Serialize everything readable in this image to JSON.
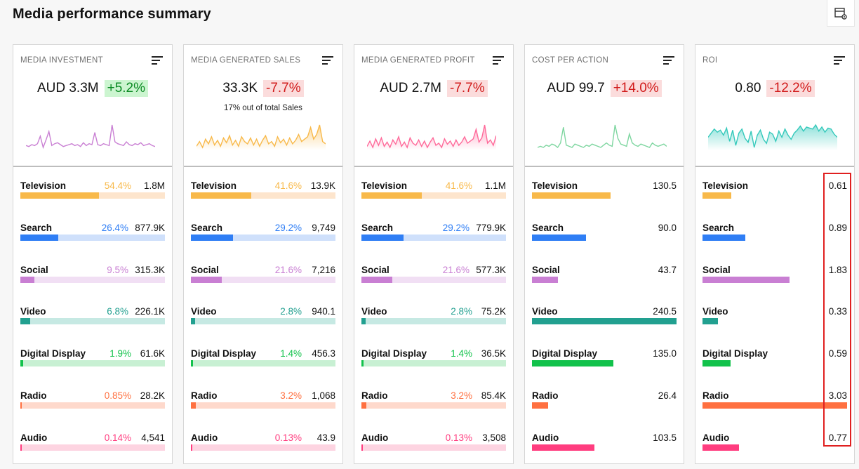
{
  "page": {
    "title": "Media performance summary"
  },
  "toolbar": {
    "settings_icon": "table-settings-icon"
  },
  "channel_colors": {
    "Television": {
      "main": "#f8b94a",
      "light": "#fde5cd"
    },
    "Search": {
      "main": "#2f7ef5",
      "light": "#cfe0fb"
    },
    "Social": {
      "main": "#c97fd3",
      "light": "#f1dff4"
    },
    "Video": {
      "main": "#22a090",
      "light": "#c6e9e3"
    },
    "Digital Display": {
      "main": "#12c24b",
      "light": "#c8f0d3"
    },
    "Radio": {
      "main": "#ff7040",
      "light": "#fed9cc"
    },
    "Audio": {
      "main": "#ff3d7f",
      "light": "#fdd4e1"
    }
  },
  "cards": [
    {
      "label": "MEDIA INVESTMENT",
      "value": "AUD 3.3M",
      "change": "+5.2%",
      "change_dir": "pos",
      "subtitle": "",
      "spark_color": "#c97fd3",
      "spark_fill": false,
      "spark": [
        12,
        11,
        13,
        12,
        14,
        22,
        10,
        18,
        27,
        12,
        14,
        15,
        13,
        11,
        12,
        13,
        14,
        12,
        13,
        11,
        15,
        12,
        14,
        13,
        26,
        13,
        12,
        14,
        13,
        12,
        34,
        16,
        14,
        13,
        12,
        16,
        13,
        12,
        14,
        13,
        15,
        12,
        13,
        14,
        12,
        11
      ],
      "rows": [
        {
          "name": "Television",
          "pct": "54.4%",
          "pct_num": 54.4,
          "value": "1.8M",
          "bar": 0.544
        },
        {
          "name": "Search",
          "pct": "26.4%",
          "pct_num": 26.4,
          "value": "877.9K",
          "bar": 0.264
        },
        {
          "name": "Social",
          "pct": "9.5%",
          "pct_num": 9.5,
          "value": "315.3K",
          "bar": 0.095
        },
        {
          "name": "Video",
          "pct": "6.8%",
          "pct_num": 6.8,
          "value": "226.1K",
          "bar": 0.068
        },
        {
          "name": "Digital Display",
          "pct": "1.9%",
          "pct_num": 1.9,
          "value": "61.6K",
          "bar": 0.019
        },
        {
          "name": "Radio",
          "pct": "0.85%",
          "pct_num": 0.85,
          "value": "28.2K",
          "bar": 0.0085
        },
        {
          "name": "Audio",
          "pct": "0.14%",
          "pct_num": 0.14,
          "value": "4,541",
          "bar": 0.0014
        }
      ]
    },
    {
      "label": "MEDIA GENERATED SALES",
      "value": "33.3K",
      "change": "-7.7%",
      "change_dir": "neg",
      "subtitle": "17% out of total Sales",
      "spark_color": "#f8b94a",
      "spark_fill": true,
      "spark": [
        14,
        18,
        13,
        20,
        16,
        22,
        15,
        19,
        14,
        21,
        17,
        23,
        15,
        19,
        14,
        22,
        18,
        16,
        21,
        15,
        20,
        14,
        19,
        23,
        16,
        18,
        14,
        22,
        17,
        20,
        15,
        21,
        16,
        19,
        24,
        18,
        20,
        22,
        30,
        20,
        24,
        32,
        18,
        16
      ],
      "rows": [
        {
          "name": "Television",
          "pct": "41.6%",
          "pct_num": 41.6,
          "value": "13.9K",
          "bar": 0.416
        },
        {
          "name": "Search",
          "pct": "29.2%",
          "pct_num": 29.2,
          "value": "9,749",
          "bar": 0.292
        },
        {
          "name": "Social",
          "pct": "21.6%",
          "pct_num": 21.6,
          "value": "7,216",
          "bar": 0.216
        },
        {
          "name": "Video",
          "pct": "2.8%",
          "pct_num": 2.8,
          "value": "940.1",
          "bar": 0.028
        },
        {
          "name": "Digital Display",
          "pct": "1.4%",
          "pct_num": 1.4,
          "value": "456.3",
          "bar": 0.014
        },
        {
          "name": "Radio",
          "pct": "3.2%",
          "pct_num": 3.2,
          "value": "1,068",
          "bar": 0.032
        },
        {
          "name": "Audio",
          "pct": "0.13%",
          "pct_num": 0.13,
          "value": "43.9",
          "bar": 0.0013
        }
      ]
    },
    {
      "label": "MEDIA GENERATED PROFIT",
      "value": "AUD 2.7M",
      "change": "-7.7%",
      "change_dir": "neg",
      "subtitle": "",
      "spark_color": "#ff6a9a",
      "spark_fill": true,
      "spark": [
        14,
        19,
        13,
        21,
        15,
        22,
        14,
        18,
        13,
        20,
        16,
        23,
        14,
        18,
        13,
        22,
        17,
        15,
        20,
        14,
        19,
        13,
        18,
        22,
        15,
        17,
        13,
        21,
        16,
        19,
        14,
        20,
        15,
        18,
        23,
        17,
        19,
        21,
        30,
        18,
        22,
        34,
        17,
        20,
        15,
        24
      ],
      "rows": [
        {
          "name": "Television",
          "pct": "41.6%",
          "pct_num": 41.6,
          "value": "1.1M",
          "bar": 0.416
        },
        {
          "name": "Search",
          "pct": "29.2%",
          "pct_num": 29.2,
          "value": "779.9K",
          "bar": 0.292
        },
        {
          "name": "Social",
          "pct": "21.6%",
          "pct_num": 21.6,
          "value": "577.3K",
          "bar": 0.216
        },
        {
          "name": "Video",
          "pct": "2.8%",
          "pct_num": 2.8,
          "value": "75.2K",
          "bar": 0.028
        },
        {
          "name": "Digital Display",
          "pct": "1.4%",
          "pct_num": 1.4,
          "value": "36.5K",
          "bar": 0.014
        },
        {
          "name": "Radio",
          "pct": "3.2%",
          "pct_num": 3.2,
          "value": "85.4K",
          "bar": 0.032
        },
        {
          "name": "Audio",
          "pct": "0.13%",
          "pct_num": 0.13,
          "value": "3,508",
          "bar": 0.0013
        }
      ]
    },
    {
      "label": "COST PER ACTION",
      "value": "AUD 99.7",
      "change": "+14.0%",
      "change_dir": "neg",
      "subtitle": "",
      "spark_color": "#7ed6a0",
      "spark_fill": false,
      "spark": [
        10,
        11,
        10,
        12,
        11,
        13,
        12,
        10,
        14,
        28,
        12,
        11,
        10,
        13,
        12,
        11,
        10,
        12,
        11,
        13,
        12,
        11,
        10,
        12,
        14,
        12,
        11,
        30,
        18,
        13,
        12,
        11,
        22,
        14,
        12,
        11,
        13,
        12,
        11,
        10,
        14,
        12,
        11,
        12,
        13,
        11
      ],
      "rows": [
        {
          "name": "Television",
          "pct": "",
          "pct_num": null,
          "value": "130.5",
          "bar": 0.543
        },
        {
          "name": "Search",
          "pct": "",
          "pct_num": null,
          "value": "90.0",
          "bar": 0.374
        },
        {
          "name": "Social",
          "pct": "",
          "pct_num": null,
          "value": "43.7",
          "bar": 0.182
        },
        {
          "name": "Video",
          "pct": "",
          "pct_num": null,
          "value": "240.5",
          "bar": 1.0
        },
        {
          "name": "Digital Display",
          "pct": "",
          "pct_num": null,
          "value": "135.0",
          "bar": 0.561
        },
        {
          "name": "Radio",
          "pct": "",
          "pct_num": null,
          "value": "26.4",
          "bar": 0.11
        },
        {
          "name": "Audio",
          "pct": "",
          "pct_num": null,
          "value": "103.5",
          "bar": 0.43
        }
      ]
    },
    {
      "label": "ROI",
      "value": "0.80",
      "change": "-12.2%",
      "change_dir": "neg",
      "subtitle": "",
      "spark_color": "#34c9bb",
      "spark_fill": true,
      "spark": [
        22,
        26,
        30,
        27,
        29,
        24,
        31,
        18,
        29,
        14,
        26,
        30,
        21,
        17,
        28,
        12,
        24,
        29,
        20,
        16,
        27,
        25,
        18,
        28,
        22,
        30,
        24,
        20,
        26,
        29,
        33,
        28,
        32,
        31,
        30,
        34,
        28,
        32,
        27,
        31,
        30,
        25,
        22
      ],
      "rows": [
        {
          "name": "Television",
          "pct": "",
          "pct_num": null,
          "value": "0.61",
          "bar": 0.201
        },
        {
          "name": "Search",
          "pct": "",
          "pct_num": null,
          "value": "0.89",
          "bar": 0.294
        },
        {
          "name": "Social",
          "pct": "",
          "pct_num": null,
          "value": "1.83",
          "bar": 0.604
        },
        {
          "name": "Video",
          "pct": "",
          "pct_num": null,
          "value": "0.33",
          "bar": 0.109
        },
        {
          "name": "Digital Display",
          "pct": "",
          "pct_num": null,
          "value": "0.59",
          "bar": 0.195
        },
        {
          "name": "Radio",
          "pct": "",
          "pct_num": null,
          "value": "3.03",
          "bar": 1.0
        },
        {
          "name": "Audio",
          "pct": "",
          "pct_num": null,
          "value": "0.77",
          "bar": 0.254
        }
      ]
    }
  ]
}
